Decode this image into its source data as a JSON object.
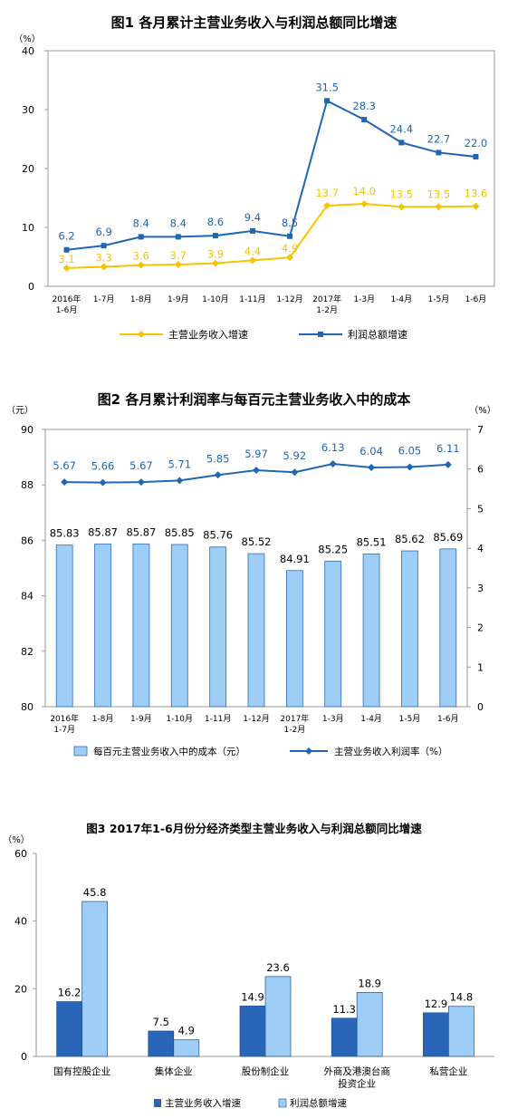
{
  "charts": [
    {
      "title": "图1  各月累计主营业务收入与利润总额同比增速",
      "unit": "（%）",
      "chart_data": {
        "type": "line",
        "categories": [
          "2016年|1-6月",
          "1-7月",
          "1-8月",
          "1-9月",
          "1-10月",
          "1-11月",
          "1-12月",
          "2017年|1-2月",
          "1-3月",
          "1-4月",
          "1-5月",
          "1-6月"
        ],
        "ylim": [
          0,
          40
        ],
        "yticks": [
          0,
          10,
          20,
          30,
          40
        ],
        "series": [
          {
            "name": "主营业务收入增速",
            "color": "#f5c400",
            "values": [
              3.1,
              3.3,
              3.6,
              3.7,
              3.9,
              4.4,
              4.9,
              13.7,
              14.0,
              13.5,
              13.5,
              13.6
            ],
            "labels": [
              "3.1",
              "3.3",
              "3.6",
              "3.7",
              "3.9",
              "4.4",
              "4.9",
              "13.7",
              "14.0",
              "13.5",
              "13.5",
              "13.6"
            ]
          },
          {
            "name": "利润总额增速",
            "color": "#1f66b3",
            "values": [
              6.2,
              6.9,
              8.4,
              8.4,
              8.6,
              9.4,
              8.5,
              31.5,
              28.3,
              24.4,
              22.7,
              22.0
            ],
            "labels": [
              "6.2",
              "6.9",
              "8.4",
              "8.4",
              "8.6",
              "9.4",
              "8.5",
              "31.5",
              "28.3",
              "24.4",
              "22.7",
              "22.0"
            ]
          }
        ],
        "legend_position": "bottom"
      }
    },
    {
      "title": "图2  各月累计利润率与每百元主营业务收入中的成本",
      "unit_left": "（元）",
      "unit_right": "（%）",
      "chart_data": {
        "type": "bar+line",
        "categories": [
          "2016年|1-7月",
          "1-8月",
          "1-9月",
          "1-10月",
          "1-11月",
          "1-12月",
          "2017年|1-2月",
          "1-3月",
          "1-4月",
          "1-5月",
          "1-6月"
        ],
        "ylim_left": [
          80,
          90
        ],
        "yticks_left": [
          80,
          82,
          84,
          86,
          88,
          90
        ],
        "ylim_right": [
          0,
          7
        ],
        "yticks_right": [
          0,
          1,
          2,
          3,
          4,
          5,
          6,
          7
        ],
        "bar_series": {
          "name": "每百元主营业务收入中的成本（元）",
          "color": "#9ecdf6",
          "edge": "#2a6fc0",
          "values": [
            85.83,
            85.87,
            85.87,
            85.85,
            85.76,
            85.52,
            84.91,
            85.25,
            85.51,
            85.62,
            85.69
          ],
          "labels": [
            "85.83",
            "85.87",
            "85.87",
            "85.85",
            "85.76",
            "85.52",
            "84.91",
            "85.25",
            "85.51",
            "85.62",
            "85.69"
          ]
        },
        "line_series": {
          "name": "主营业务收入利润率（%）",
          "color": "#1f66b3",
          "values": [
            5.67,
            5.66,
            5.67,
            5.71,
            5.85,
            5.97,
            5.92,
            6.13,
            6.04,
            6.05,
            6.11
          ],
          "labels": [
            "5.67",
            "5.66",
            "5.67",
            "5.71",
            "5.85",
            "5.97",
            "5.92",
            "6.13",
            "6.04",
            "6.05",
            "6.11"
          ]
        },
        "legend_position": "bottom"
      }
    },
    {
      "title": "图3  2017年1-6月份分经济类型主营业务收入与利润总额同比增速",
      "unit": "（%）",
      "chart_data": {
        "type": "bar",
        "categories": [
          "国有控股企业",
          "集体企业",
          "股份制企业",
          "外商及港澳台商|投资企业",
          "私营企业"
        ],
        "ylim": [
          0,
          60
        ],
        "yticks": [
          0,
          20,
          40,
          60
        ],
        "series": [
          {
            "name": "主营业务收入增速",
            "color": "#2a66b8",
            "values": [
              16.2,
              7.5,
              14.9,
              11.3,
              12.9
            ],
            "labels": [
              "16.2",
              "7.5",
              "14.9",
              "11.3",
              "12.9"
            ]
          },
          {
            "name": "利润总额增速",
            "color": "#9ecdf6",
            "values": [
              45.8,
              4.9,
              23.6,
              18.9,
              14.8
            ],
            "labels": [
              "45.8",
              "4.9",
              "23.6",
              "18.9",
              "14.8"
            ]
          }
        ],
        "legend_position": "bottom"
      }
    }
  ]
}
